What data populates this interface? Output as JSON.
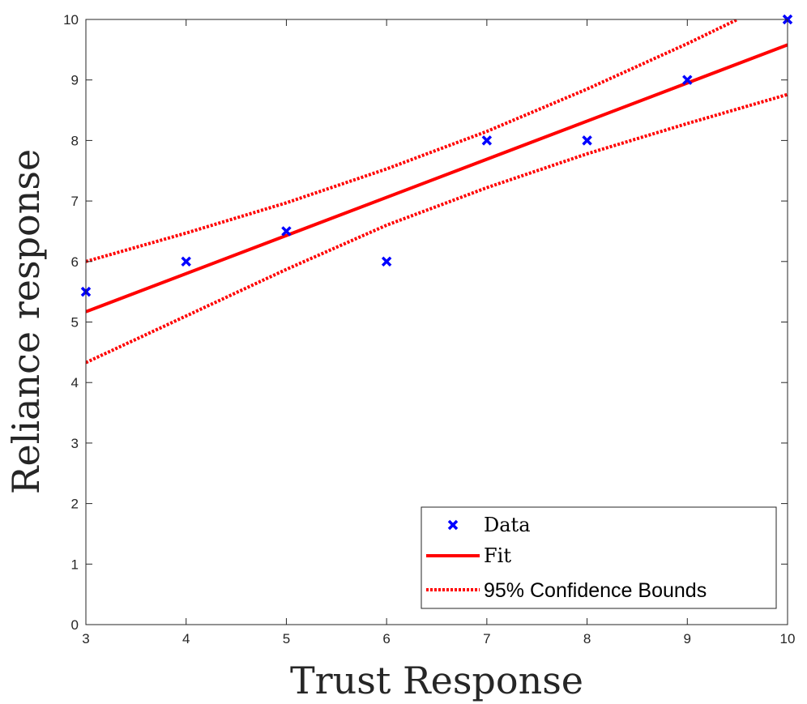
{
  "chart_data": {
    "type": "scatter",
    "xlabel": "Trust Response",
    "ylabel": "Reliance response",
    "xlim": [
      3,
      10
    ],
    "ylim": [
      0,
      10
    ],
    "xticks": [
      "3",
      "4",
      "5",
      "6",
      "7",
      "8",
      "9",
      "10"
    ],
    "yticks": [
      "0",
      "1",
      "2",
      "3",
      "4",
      "5",
      "6",
      "7",
      "8",
      "9",
      "10"
    ],
    "grid": false,
    "legend_position": "bottom-right",
    "series": [
      {
        "name": "Data",
        "kind": "scatter",
        "marker": "x",
        "color": "#0000ff",
        "x": [
          3,
          4,
          5,
          6,
          7,
          8,
          9,
          10
        ],
        "y": [
          5.5,
          6,
          6.5,
          6,
          8,
          8,
          9,
          10
        ]
      },
      {
        "name": "Fit",
        "kind": "line",
        "style": "solid",
        "color": "#ff0000",
        "x": [
          3,
          10
        ],
        "y": [
          5.17,
          9.58
        ]
      },
      {
        "name": "95% Confidence Bounds",
        "kind": "line",
        "style": "dotted",
        "color": "#ff0000",
        "x": [
          3,
          4,
          5,
          6,
          7,
          8,
          9,
          9.5
        ],
        "y": [
          6.0,
          6.47,
          6.97,
          7.53,
          8.15,
          8.85,
          9.6,
          10.0
        ]
      },
      {
        "name": "",
        "kind": "line",
        "style": "dotted",
        "color": "#ff0000",
        "x": [
          3,
          4,
          5,
          6,
          7,
          8,
          9,
          10
        ],
        "y": [
          4.33,
          5.1,
          5.87,
          6.6,
          7.22,
          7.78,
          8.28,
          8.76
        ]
      }
    ]
  }
}
